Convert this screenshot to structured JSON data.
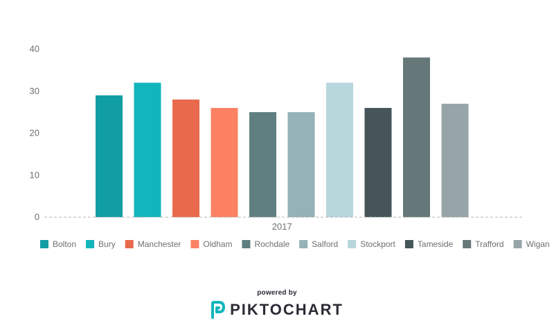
{
  "chart_data": {
    "type": "bar",
    "categories": [
      "2017"
    ],
    "series": [
      {
        "name": "Bolton",
        "values": [
          29
        ],
        "color": "#119da4"
      },
      {
        "name": "Bury",
        "values": [
          32
        ],
        "color": "#13b5bc"
      },
      {
        "name": "Manchester",
        "values": [
          28
        ],
        "color": "#e8694c"
      },
      {
        "name": "Oldham",
        "values": [
          26
        ],
        "color": "#fd8264"
      },
      {
        "name": "Rochdale",
        "values": [
          25
        ],
        "color": "#607f81"
      },
      {
        "name": "Salford",
        "values": [
          25
        ],
        "color": "#95b2b6"
      },
      {
        "name": "Stockport",
        "values": [
          32
        ],
        "color": "#b8d7dc"
      },
      {
        "name": "Tameside",
        "values": [
          26
        ],
        "color": "#465559"
      },
      {
        "name": "Trafford",
        "values": [
          38
        ],
        "color": "#66777a"
      },
      {
        "name": "Wigan",
        "values": [
          27
        ],
        "color": "#98a5a8"
      }
    ],
    "yticks": [
      "0",
      "10",
      "20",
      "30",
      "40"
    ],
    "ylim": [
      0,
      40
    ],
    "grid": false,
    "legend_position": "bottom",
    "title": "",
    "xlabel": "",
    "ylabel": ""
  },
  "footer": {
    "powered_by": "powered by",
    "brand": "PIKTOCHART",
    "logo_icon": "piktochart-logo-icon",
    "logo_color": "#13b5bc"
  }
}
